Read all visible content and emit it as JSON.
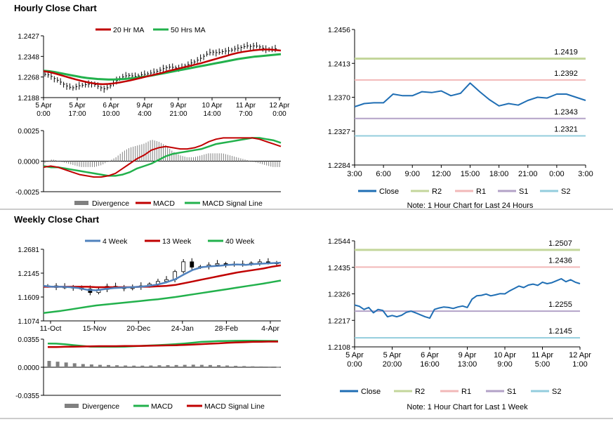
{
  "sections": {
    "hourly_title": "Hourly Close Chart",
    "weekly_title": "Weekly Close Chart"
  },
  "colors": {
    "ma_short": "#c00000",
    "ma_long": "#22b14c",
    "close": "#1f6eb4",
    "r2": "#c3d69b",
    "r1": "#f2b8b8",
    "s1": "#b3a2c7",
    "s2": "#93cddd",
    "divergence": "#808080",
    "ma4": "#4f81bd",
    "separator": "#7f7f7f"
  },
  "chart_data": [
    {
      "id": "hourly_price",
      "type": "line",
      "title": "Hourly Close Chart",
      "ylim": [
        1.2188,
        1.2427
      ],
      "yticks": [
        "1.2427",
        "1.2348",
        "1.2268",
        "1.2188"
      ],
      "xticks": [
        [
          "5 Apr",
          "0:00"
        ],
        [
          "5 Apr",
          "17:00"
        ],
        [
          "6 Apr",
          "10:00"
        ],
        [
          "9 Apr",
          "4:00"
        ],
        [
          "9 Apr",
          "21:00"
        ],
        [
          "10 Apr",
          "14:00"
        ],
        [
          "11 Apr",
          "7:00"
        ],
        [
          "12 Apr",
          "0:00"
        ]
      ],
      "legend": [
        "20 Hr MA",
        "50 Hrs MA"
      ],
      "n": 125,
      "series": [
        {
          "name": "Close",
          "values": [
            1.2278,
            1.2276,
            1.227,
            1.2262,
            1.2255,
            1.2248,
            1.224,
            1.2233,
            1.2228,
            1.2226,
            1.223,
            1.2234,
            1.2236,
            1.2238,
            1.224,
            1.2242,
            1.2238,
            1.2232,
            1.2226,
            1.2222,
            1.2226,
            1.2234,
            1.2244,
            1.2254,
            1.2262,
            1.2268,
            1.2272,
            1.2274,
            1.2272,
            1.227,
            1.2272,
            1.2276,
            1.2278,
            1.228,
            1.2283,
            1.2286,
            1.229,
            1.2294,
            1.23,
            1.2304,
            1.2306,
            1.2305,
            1.2303,
            1.2303,
            1.2305,
            1.231,
            1.2316,
            1.2322,
            1.2326,
            1.2333,
            1.234,
            1.2348,
            1.2356,
            1.2362,
            1.2364,
            1.2362,
            1.2363,
            1.2366,
            1.2368,
            1.2369,
            1.2372,
            1.2376,
            1.2379,
            1.2382,
            1.2385,
            1.2388,
            1.2386,
            1.2388,
            1.2387,
            1.2384,
            1.2379,
            1.2375,
            1.2374,
            1.2375,
            1.2377
          ],
          "sample": 2
        },
        {
          "name": "20 Hr MA",
          "values": [
            1.229,
            1.2287,
            1.2282,
            1.2276,
            1.227,
            1.2264,
            1.2258,
            1.2253,
            1.2248,
            1.2244,
            1.2241,
            1.224,
            1.2241,
            1.2243,
            1.2246,
            1.225,
            1.2254,
            1.2259,
            1.2264,
            1.2269,
            1.2274,
            1.2279,
            1.2284,
            1.229,
            1.2295,
            1.23,
            1.2305,
            1.231,
            1.2315,
            1.232,
            1.2326,
            1.2332,
            1.2338,
            1.2344,
            1.235,
            1.2356,
            1.2361,
            1.2365,
            1.2368,
            1.2371,
            1.2373,
            1.2374,
            1.2374,
            1.2372,
            1.237
          ]
        },
        {
          "name": "50 Hrs MA",
          "values": [
            1.2292,
            1.229,
            1.2287,
            1.2283,
            1.2279,
            1.2275,
            1.2271,
            1.2267,
            1.2264,
            1.2262,
            1.226,
            1.2259,
            1.2258,
            1.2258,
            1.2259,
            1.226,
            1.2262,
            1.2264,
            1.2267,
            1.227,
            1.2273,
            1.2277,
            1.2281,
            1.2285,
            1.2289,
            1.2293,
            1.2297,
            1.2301,
            1.2305,
            1.2309,
            1.2313,
            1.2317,
            1.2321,
            1.2325,
            1.2329,
            1.2333,
            1.2337,
            1.234,
            1.2343,
            1.2346,
            1.2348,
            1.235,
            1.2352,
            1.2354,
            1.2356
          ]
        }
      ]
    },
    {
      "id": "hourly_macd",
      "type": "line",
      "ylim": [
        -0.0025,
        0.0025
      ],
      "yticks": [
        "0.0025",
        "0.0000",
        "-0.0025"
      ],
      "legend": [
        "Divergence",
        "MACD",
        "MACD Signal Line"
      ],
      "series": [
        {
          "name": "MACD",
          "values": [
            -0.0005,
            -0.0004,
            -0.0005,
            -0.0007,
            -0.0009,
            -0.0011,
            -0.0012,
            -0.0013,
            -0.0013,
            -0.0012,
            -0.001,
            -0.0006,
            -0.0002,
            0.0002,
            0.0005,
            0.0009,
            0.0011,
            0.0012,
            0.0011,
            0.001,
            0.001,
            0.0011,
            0.0013,
            0.0016,
            0.0018,
            0.0019,
            0.0019,
            0.0019,
            0.0019,
            0.0019,
            0.0018,
            0.0016,
            0.0014,
            0.0012
          ]
        },
        {
          "name": "MACD Signal Line",
          "values": [
            -0.0004,
            -0.0005,
            -0.0005,
            -0.0006,
            -0.0007,
            -0.0008,
            -0.0009,
            -0.001,
            -0.0011,
            -0.0012,
            -0.0012,
            -0.0011,
            -0.0009,
            -0.0006,
            -0.0004,
            -0.0002,
            0.0001,
            0.0004,
            0.0006,
            0.0007,
            0.0008,
            0.0009,
            0.001,
            0.0012,
            0.0014,
            0.0015,
            0.0016,
            0.0017,
            0.0018,
            0.0019,
            0.0019,
            0.0018,
            0.0017,
            0.0015
          ]
        }
      ]
    },
    {
      "id": "hourly_close_24h",
      "type": "line",
      "ylim": [
        1.2284,
        1.2456
      ],
      "yticks": [
        "1.2456",
        "1.2413",
        "1.2370",
        "1.2327",
        "1.2284"
      ],
      "xticks": [
        "3:00",
        "6:00",
        "9:00",
        "12:00",
        "15:00",
        "18:00",
        "21:00",
        "0:00",
        "3:00"
      ],
      "levels": [
        {
          "name": "R2",
          "value": 1.2419,
          "label": "1.2419"
        },
        {
          "name": "R1",
          "value": 1.2392,
          "label": "1.2392"
        },
        {
          "name": "S1",
          "value": 1.2343,
          "label": "1.2343"
        },
        {
          "name": "S2",
          "value": 1.2321,
          "label": "1.2321"
        }
      ],
      "legend": [
        "Close",
        "R2",
        "R1",
        "S1",
        "S2"
      ],
      "note": "Note: 1 Hour Chart for Last 24 Hours",
      "series": [
        {
          "name": "Close",
          "values": [
            1.2358,
            1.2362,
            1.2363,
            1.2363,
            1.2374,
            1.2372,
            1.2372,
            1.2377,
            1.2376,
            1.2378,
            1.2372,
            1.2375,
            1.2388,
            1.2377,
            1.2367,
            1.2359,
            1.2362,
            1.236,
            1.2366,
            1.237,
            1.2369,
            1.2374,
            1.2374,
            1.237,
            1.2366
          ]
        }
      ]
    },
    {
      "id": "weekly_price",
      "type": "line",
      "title": "Weekly Close Chart",
      "ylim": [
        1.1074,
        1.2681
      ],
      "yticks": [
        "1.2681",
        "1.2145",
        "1.1609",
        "1.1074"
      ],
      "xticks": [
        "11-Oct",
        "15-Nov",
        "20-Dec",
        "24-Jan",
        "28-Feb",
        "4-Apr"
      ],
      "legend": [
        "4 Week",
        "13 Week",
        "40 Week"
      ],
      "series": [
        {
          "name": "Close",
          "values": [
            1.186,
            1.1825,
            1.184,
            1.181,
            1.179,
            1.171,
            1.178,
            1.185,
            1.184,
            1.18,
            1.183,
            1.186,
            1.19,
            1.196,
            1.2,
            1.218,
            1.24,
            1.228,
            1.229,
            1.233,
            1.236,
            1.233,
            1.235,
            1.235,
            1.237,
            1.24,
            1.238,
            1.237
          ]
        },
        {
          "name": "4 Week",
          "values": [
            1.186,
            1.184,
            1.184,
            1.183,
            1.181,
            1.177,
            1.176,
            1.179,
            1.181,
            1.182,
            1.183,
            1.184,
            1.186,
            1.189,
            1.194,
            1.201,
            1.212,
            1.222,
            1.228,
            1.23,
            1.231,
            1.233,
            1.234,
            1.233,
            1.235,
            1.236,
            1.237,
            1.238
          ]
        },
        {
          "name": "13 Week",
          "values": [
            1.184,
            1.184,
            1.184,
            1.184,
            1.184,
            1.184,
            1.183,
            1.183,
            1.183,
            1.183,
            1.183,
            1.184,
            1.184,
            1.185,
            1.186,
            1.188,
            1.192,
            1.196,
            1.2,
            1.204,
            1.208,
            1.212,
            1.216,
            1.219,
            1.222,
            1.225,
            1.229,
            1.232
          ]
        },
        {
          "name": "40 Week",
          "values": [
            1.125,
            1.1275,
            1.13,
            1.133,
            1.136,
            1.139,
            1.142,
            1.144,
            1.146,
            1.148,
            1.15,
            1.152,
            1.154,
            1.156,
            1.1585,
            1.161,
            1.164,
            1.167,
            1.17,
            1.173,
            1.176,
            1.179,
            1.182,
            1.185,
            1.188,
            1.191,
            1.1945,
            1.198
          ]
        }
      ]
    },
    {
      "id": "weekly_macd",
      "type": "bar",
      "ylim": [
        -0.0355,
        0.0355
      ],
      "yticks": [
        "0.0355",
        "0.0000",
        "-0.0355"
      ],
      "legend": [
        "Divergence",
        "MACD",
        "MACD Signal Line"
      ],
      "series": [
        {
          "name": "Divergence",
          "values": [
            0.008,
            0.007,
            0.006,
            0.005,
            0.004,
            0.0035,
            0.003,
            0.0028,
            0.0025,
            0.0022,
            0.002,
            0.002,
            0.0022,
            0.0025,
            0.0026,
            0.0028,
            0.003,
            0.0032,
            0.003,
            0.0028,
            0.0026,
            0.0022,
            0.0018,
            0.0015,
            0.0012,
            0.001,
            0.0008,
            0.0006
          ]
        },
        {
          "name": "MACD",
          "values": [
            0.03,
            0.0298,
            0.029,
            0.028,
            0.027,
            0.026,
            0.0258,
            0.0258,
            0.0258,
            0.026,
            0.0265,
            0.027,
            0.0275,
            0.028,
            0.0285,
            0.0292,
            0.03,
            0.031,
            0.032,
            0.0325,
            0.033,
            0.0332,
            0.0334,
            0.0335,
            0.0335,
            0.0334,
            0.0333,
            0.0332
          ]
        },
        {
          "name": "MACD Signal Line",
          "values": [
            0.0255,
            0.0255,
            0.0258,
            0.026,
            0.0262,
            0.0264,
            0.0266,
            0.0266,
            0.0266,
            0.0268,
            0.0268,
            0.027,
            0.0272,
            0.0274,
            0.0276,
            0.0278,
            0.0282,
            0.0286,
            0.0292,
            0.0297,
            0.0302,
            0.0308,
            0.0312,
            0.0316,
            0.032,
            0.0322,
            0.0324,
            0.0324
          ]
        }
      ]
    },
    {
      "id": "weekly_close_1w",
      "type": "line",
      "ylim": [
        1.2108,
        1.2544
      ],
      "yticks": [
        "1.2544",
        "1.2435",
        "1.2326",
        "1.2217",
        "1.2108"
      ],
      "xticks": [
        [
          "5 Apr",
          "0:00"
        ],
        [
          "5 Apr",
          "20:00"
        ],
        [
          "6 Apr",
          "16:00"
        ],
        [
          "9 Apr",
          "13:00"
        ],
        [
          "10 Apr",
          "9:00"
        ],
        [
          "11 Apr",
          "5:00"
        ],
        [
          "12 Apr",
          "1:00"
        ]
      ],
      "levels": [
        {
          "name": "R2",
          "value": 1.2507,
          "label": "1.2507"
        },
        {
          "name": "R1",
          "value": 1.2436,
          "label": "1.2436"
        },
        {
          "name": "S1",
          "value": 1.2255,
          "label": "1.2255"
        },
        {
          "name": "S2",
          "value": 1.2145,
          "label": "1.2145"
        }
      ],
      "legend": [
        "Close",
        "R2",
        "R1",
        "S1",
        "S2"
      ],
      "note": "Note: 1 Hour Chart for Last 1 Week",
      "series": [
        {
          "name": "Close",
          "values": [
            1.228,
            1.2275,
            1.2262,
            1.227,
            1.2248,
            1.2262,
            1.2258,
            1.2232,
            1.2237,
            1.2232,
            1.2238,
            1.225,
            1.2255,
            1.2248,
            1.224,
            1.2232,
            1.2226,
            1.2262,
            1.2268,
            1.2272,
            1.227,
            1.2266,
            1.2272,
            1.2276,
            1.227,
            1.2304,
            1.2318,
            1.232,
            1.2325,
            1.2318,
            1.2322,
            1.2327,
            1.2326,
            1.2338,
            1.2348,
            1.2358,
            1.2352,
            1.2362,
            1.2366,
            1.2361,
            1.2374,
            1.2368,
            1.2372,
            1.238,
            1.2388,
            1.2376,
            1.2384,
            1.2374,
            1.2368
          ]
        }
      ]
    }
  ]
}
